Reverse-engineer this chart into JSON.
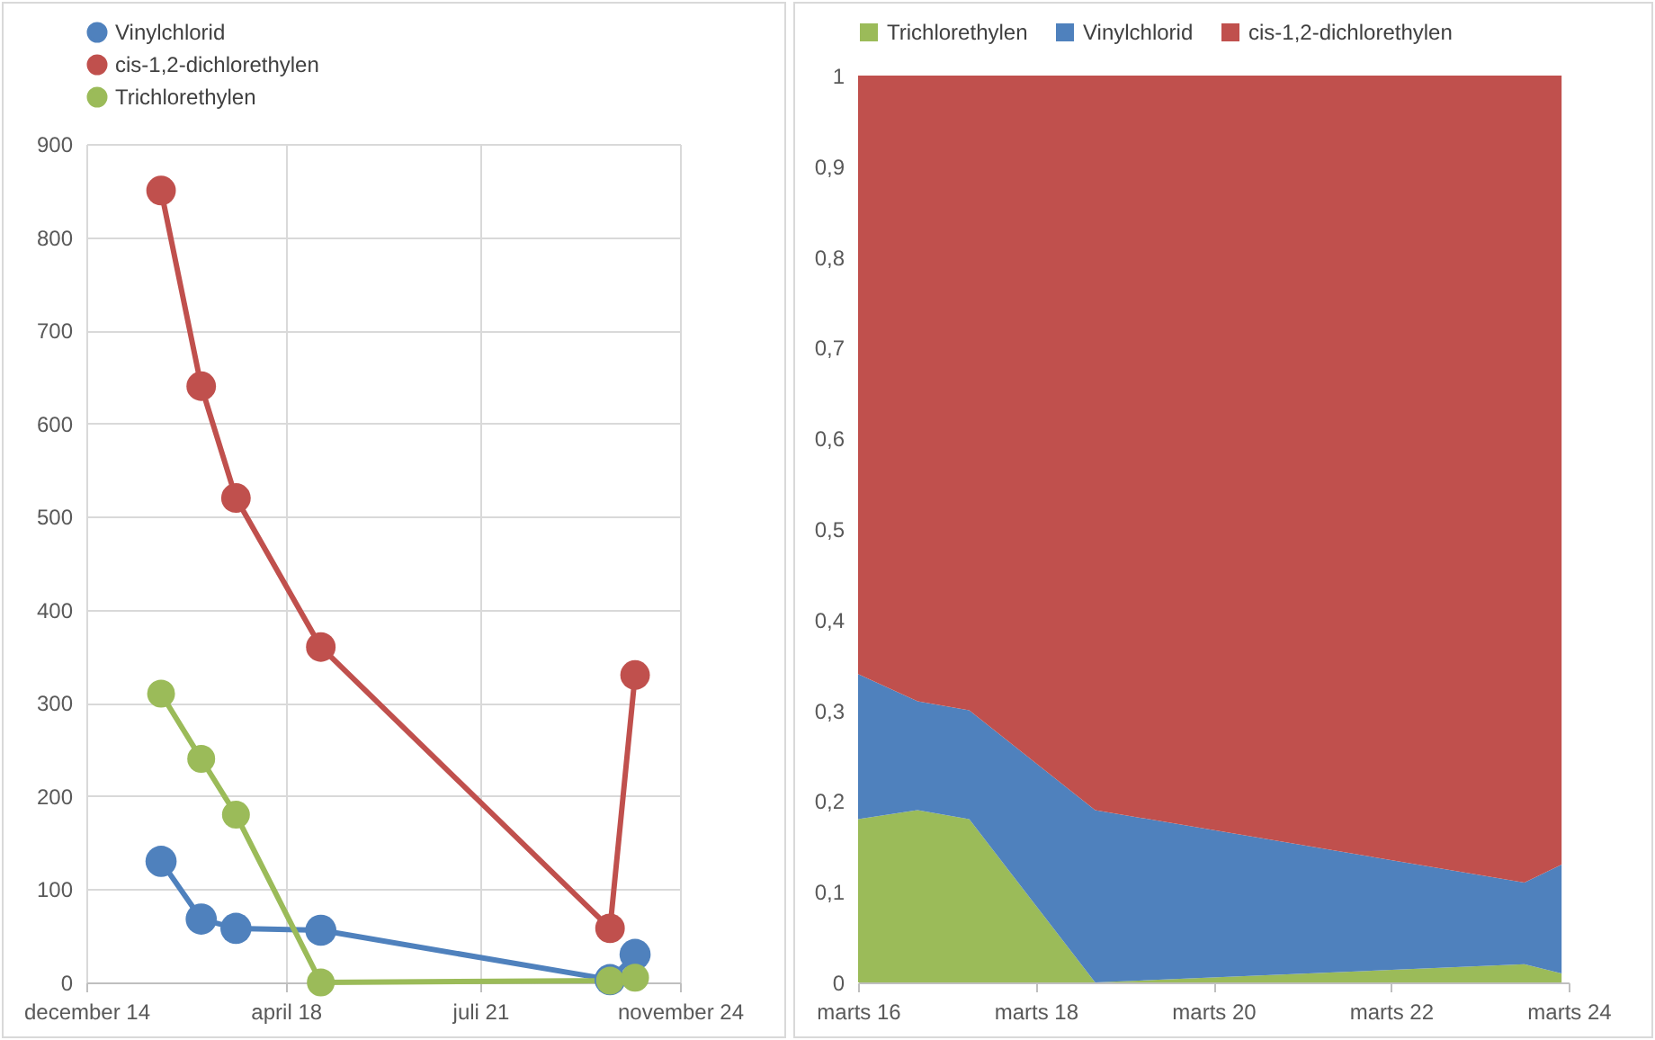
{
  "chart_data": [
    {
      "type": "line",
      "x": [
        "2016-03-01",
        "2016-11-01",
        "2017-06-01",
        "2018-11-01",
        "2023-09-01",
        "2024-02-01"
      ],
      "series": [
        {
          "name": "Vinylchlorid",
          "color": "#4f81bd",
          "values": [
            130,
            68,
            58,
            56,
            3,
            30
          ]
        },
        {
          "name": "cis-1,2-dichlorethylen",
          "color": "#c0504d",
          "values": [
            850,
            640,
            520,
            360,
            58,
            330
          ]
        },
        {
          "name": "Trichlorethylen",
          "color": "#9bbb59",
          "values": [
            310,
            240,
            180,
            0,
            2,
            5
          ]
        }
      ],
      "xlim": [
        "2014-12-01",
        "2024-11-01"
      ],
      "xticks": [
        {
          "value": "2014-12-01",
          "label": "december 14"
        },
        {
          "value": "2018-04-01",
          "label": "april 18"
        },
        {
          "value": "2021-07-01",
          "label": "juli 21"
        },
        {
          "value": "2024-11-01",
          "label": "november 24"
        }
      ],
      "ylim": [
        0,
        900
      ],
      "yticks": [
        0,
        100,
        200,
        300,
        400,
        500,
        600,
        700,
        800,
        900
      ],
      "grid": true,
      "legend": "top",
      "marker": "circle"
    },
    {
      "type": "area",
      "stacked": true,
      "x": [
        "2016-03-01",
        "2016-11-01",
        "2017-06-01",
        "2018-11-01",
        "2023-09-01",
        "2024-02-01"
      ],
      "series": [
        {
          "name": "Trichlorethylen",
          "color": "#9bbb59",
          "values": [
            0.18,
            0.19,
            0.18,
            0,
            0.02,
            0.01
          ]
        },
        {
          "name": "Vinylchlorid",
          "color": "#4f81bd",
          "values": [
            0.16,
            0.12,
            0.12,
            0.19,
            0.09,
            0.12
          ]
        },
        {
          "name": "cis-1,2-dichlorethylen",
          "color": "#c0504d",
          "values": [
            0.66,
            0.69,
            0.7,
            0.81,
            0.89,
            0.87
          ]
        }
      ],
      "xlim": [
        "2016-03-01",
        "2024-03-01"
      ],
      "xticks": [
        {
          "value": "2016-03-01",
          "label": "marts 16"
        },
        {
          "value": "2018-03-01",
          "label": "marts 18"
        },
        {
          "value": "2020-03-01",
          "label": "marts 20"
        },
        {
          "value": "2022-03-01",
          "label": "marts 22"
        },
        {
          "value": "2024-03-01",
          "label": "marts 24"
        }
      ],
      "ylim": [
        0,
        1
      ],
      "yticks": [
        0,
        {
          "value": 0.1,
          "label": "0,1"
        },
        {
          "value": 0.2,
          "label": "0,2"
        },
        {
          "value": 0.3,
          "label": "0,3"
        },
        {
          "value": 0.4,
          "label": "0,4"
        },
        {
          "value": 0.5,
          "label": "0,5"
        },
        {
          "value": 0.6,
          "label": "0,6"
        },
        {
          "value": 0.7,
          "label": "0,7"
        },
        {
          "value": 0.8,
          "label": "0,8"
        },
        {
          "value": 0.9,
          "label": "0,9"
        },
        1
      ],
      "grid": false,
      "legend": "top"
    }
  ]
}
